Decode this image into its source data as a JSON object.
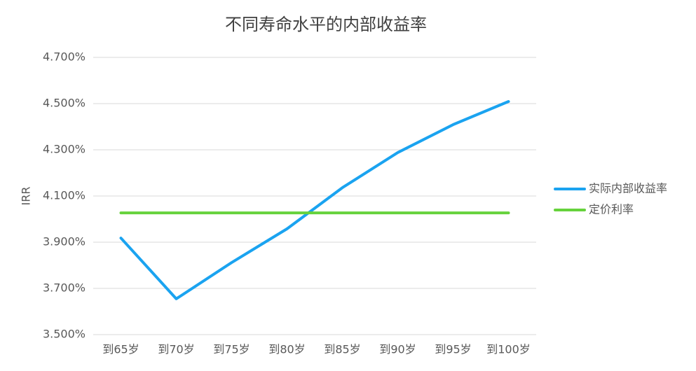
{
  "chart_data": {
    "type": "line",
    "title": "不同寿命水平的内部收益率",
    "y_label": "IRR",
    "categories": [
      "到65岁",
      "到70岁",
      "到75岁",
      "到80岁",
      "到85岁",
      "到90岁",
      "到95岁",
      "到100岁"
    ],
    "series": [
      {
        "name": "实际内部收益率",
        "color": "#1aa3f0",
        "values": [
          3.918,
          3.655,
          3.812,
          3.958,
          4.136,
          4.288,
          4.409,
          4.509
        ]
      },
      {
        "name": "定价利率",
        "color": "#66d23c",
        "values": [
          4.027,
          4.027,
          4.027,
          4.027,
          4.027,
          4.027,
          4.027,
          4.027
        ]
      }
    ],
    "ylim": [
      3.5,
      4.7
    ],
    "yticks": [
      {
        "value": 3.5,
        "label": "3.500%"
      },
      {
        "value": 3.7,
        "label": "3.700%"
      },
      {
        "value": 3.9,
        "label": "3.900%"
      },
      {
        "value": 4.1,
        "label": "4.100%"
      },
      {
        "value": 4.3,
        "label": "4.300%"
      },
      {
        "value": 4.5,
        "label": "4.500%"
      },
      {
        "value": 4.7,
        "label": "4.700%"
      }
    ],
    "grid": true,
    "legend": "right"
  }
}
